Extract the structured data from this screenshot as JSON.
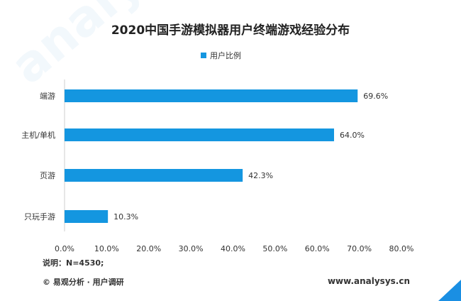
{
  "title": "2020中国手游模拟器用户终端游戏经验分布",
  "legend": {
    "label": "用户比例"
  },
  "note": "说明：N=4530;",
  "footer": {
    "left": "© 易观分析 · 用户调研",
    "right": "www.analysys.cn"
  },
  "watermark": "analysys 易观分析",
  "colors": {
    "bar": "#1496e0",
    "corner": "#1a8fe3"
  },
  "chart_data": {
    "type": "bar",
    "orientation": "horizontal",
    "categories": [
      "端游",
      "主机/单机",
      "页游",
      "只玩手游"
    ],
    "series": [
      {
        "name": "用户比例",
        "values": [
          69.6,
          64.0,
          42.3,
          10.3
        ]
      }
    ],
    "value_labels": [
      "69.6%",
      "64.0%",
      "42.3%",
      "10.3%"
    ],
    "xlim": [
      0,
      80
    ],
    "xticks": [
      "0.0%",
      "10.0%",
      "20.0%",
      "30.0%",
      "40.0%",
      "50.0%",
      "60.0%",
      "70.0%",
      "80.0%"
    ],
    "grid": false,
    "legend_position": "top-center"
  }
}
